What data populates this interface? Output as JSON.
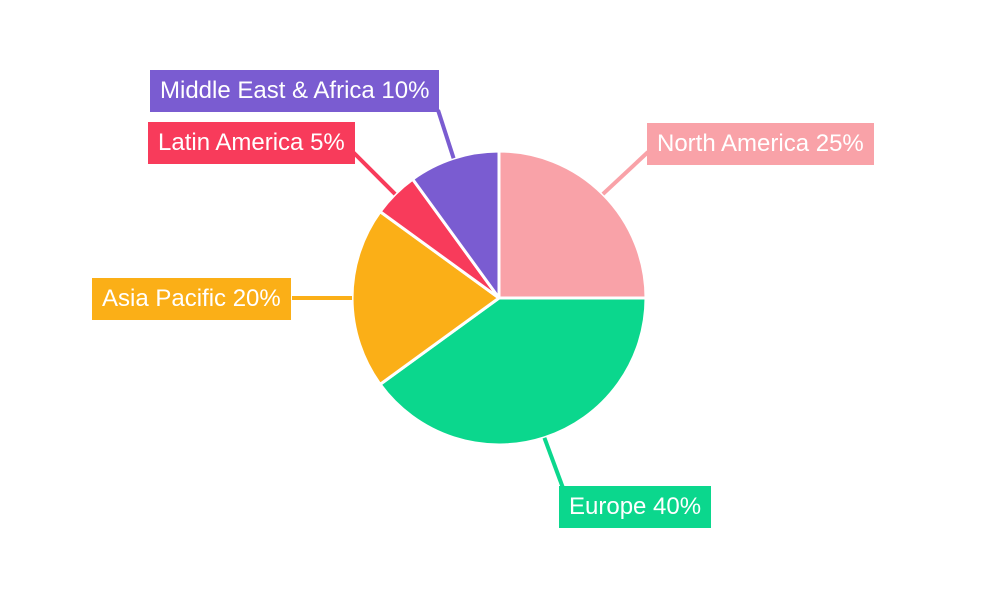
{
  "chart_data": {
    "type": "pie",
    "title": "",
    "direction": "clockwise",
    "start_angle_deg": 0,
    "total": 100,
    "legend_position": "callout-labels",
    "background_color": "#FFFFFF",
    "slice_gap_color": "#FFFFFF",
    "label_text_color": "#FFFFFF",
    "slices": [
      {
        "label": "North America",
        "value": 25,
        "pct_text": "25%",
        "text": "North America 25%",
        "color": "#F9A2A8"
      },
      {
        "label": "Europe",
        "value": 40,
        "pct_text": "40%",
        "text": "Europe 40%",
        "color": "#0BD78D"
      },
      {
        "label": "Asia Pacific",
        "value": 20,
        "pct_text": "20%",
        "text": "Asia Pacific 20%",
        "color": "#FBAF17"
      },
      {
        "label": "Latin America",
        "value": 5,
        "pct_text": "5%",
        "text": "Latin America 5%",
        "color": "#F83B5B"
      },
      {
        "label": "Middle East & Africa",
        "value": 10,
        "pct_text": "10%",
        "text": "Middle East & Africa 10%",
        "color": "#7A5CD1"
      }
    ]
  }
}
